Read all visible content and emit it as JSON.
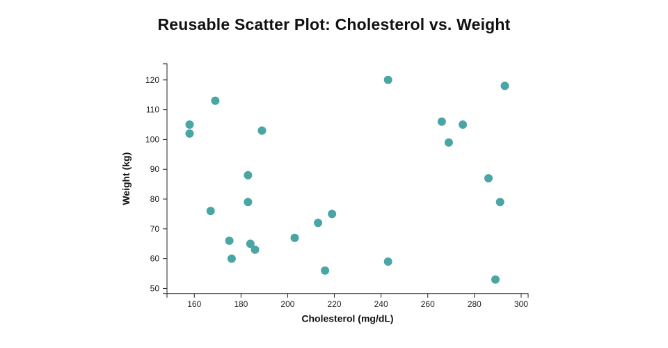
{
  "title": "Reusable Scatter Plot: Cholesterol vs. Weight",
  "chart_data": {
    "type": "scatter",
    "title": "Reusable Scatter Plot: Cholesterol vs. Weight",
    "xlabel": "Cholesterol (mg/dL)",
    "ylabel": "Weight (kg)",
    "x_ticks": [
      160,
      180,
      200,
      220,
      240,
      260,
      280,
      300
    ],
    "y_ticks": [
      50,
      60,
      70,
      80,
      90,
      100,
      110,
      120
    ],
    "xlim": [
      148.3,
      303.0
    ],
    "ylim": [
      48.3,
      125.4
    ],
    "grid": false,
    "legend": "none",
    "points": [
      {
        "x": 158,
        "y": 105
      },
      {
        "x": 158,
        "y": 102
      },
      {
        "x": 167,
        "y": 76
      },
      {
        "x": 169,
        "y": 113
      },
      {
        "x": 175,
        "y": 66
      },
      {
        "x": 176,
        "y": 60
      },
      {
        "x": 183,
        "y": 88
      },
      {
        "x": 183,
        "y": 79
      },
      {
        "x": 184,
        "y": 65
      },
      {
        "x": 186,
        "y": 63
      },
      {
        "x": 189,
        "y": 103
      },
      {
        "x": 203,
        "y": 67
      },
      {
        "x": 213,
        "y": 72
      },
      {
        "x": 216,
        "y": 56
      },
      {
        "x": 219,
        "y": 75
      },
      {
        "x": 243,
        "y": 120
      },
      {
        "x": 243,
        "y": 59
      },
      {
        "x": 266,
        "y": 106
      },
      {
        "x": 269,
        "y": 99
      },
      {
        "x": 275,
        "y": 105
      },
      {
        "x": 286,
        "y": 87
      },
      {
        "x": 289,
        "y": 53
      },
      {
        "x": 291,
        "y": 79
      },
      {
        "x": 293,
        "y": 118
      }
    ],
    "colors": {
      "dot": "#4aa5a5",
      "axis": "#222222",
      "tick_text": "#222222",
      "label_text": "#111111"
    }
  }
}
